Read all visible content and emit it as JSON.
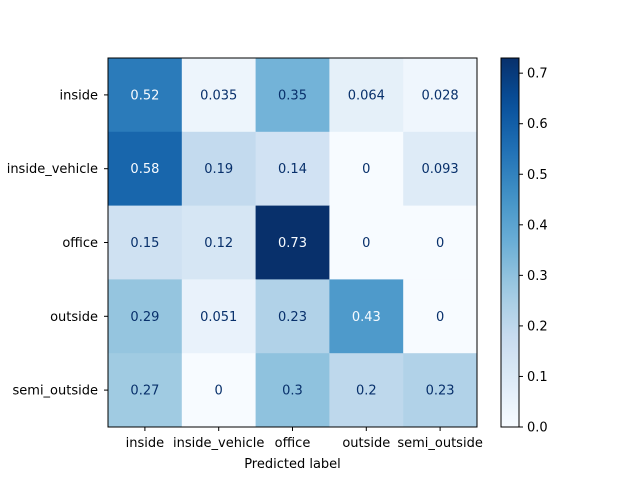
{
  "chart_data": {
    "type": "heatmap",
    "title": "",
    "xlabel": "Predicted label",
    "ylabel": "",
    "x_categories": [
      "inside",
      "inside_vehicle",
      "office",
      "outside",
      "semi_outside"
    ],
    "y_categories": [
      "inside",
      "inside_vehicle",
      "office",
      "outside",
      "semi_outside"
    ],
    "values": [
      [
        0.52,
        0.035,
        0.35,
        0.064,
        0.028
      ],
      [
        0.58,
        0.19,
        0.14,
        0,
        0.093
      ],
      [
        0.15,
        0.12,
        0.73,
        0,
        0
      ],
      [
        0.29,
        0.051,
        0.23,
        0.43,
        0
      ],
      [
        0.27,
        0,
        0.3,
        0.2,
        0.23
      ]
    ],
    "value_labels": [
      [
        "0.52",
        "0.035",
        "0.35",
        "0.064",
        "0.028"
      ],
      [
        "0.58",
        "0.19",
        "0.14",
        "0",
        "0.093"
      ],
      [
        "0.15",
        "0.12",
        "0.73",
        "0",
        "0"
      ],
      [
        "0.29",
        "0.051",
        "0.23",
        "0.43",
        "0"
      ],
      [
        "0.27",
        "0",
        "0.3",
        "0.2",
        "0.23"
      ]
    ],
    "colormap": "Blues",
    "vmin": 0,
    "vmax": 0.73,
    "colorbar": {
      "ticks": [
        0.0,
        0.1,
        0.2,
        0.3,
        0.4,
        0.5,
        0.6,
        0.7
      ],
      "tick_labels": [
        "0.0",
        "0.1",
        "0.2",
        "0.3",
        "0.4",
        "0.5",
        "0.6",
        "0.7"
      ]
    },
    "grid": false,
    "legend": "colorbar-right"
  }
}
